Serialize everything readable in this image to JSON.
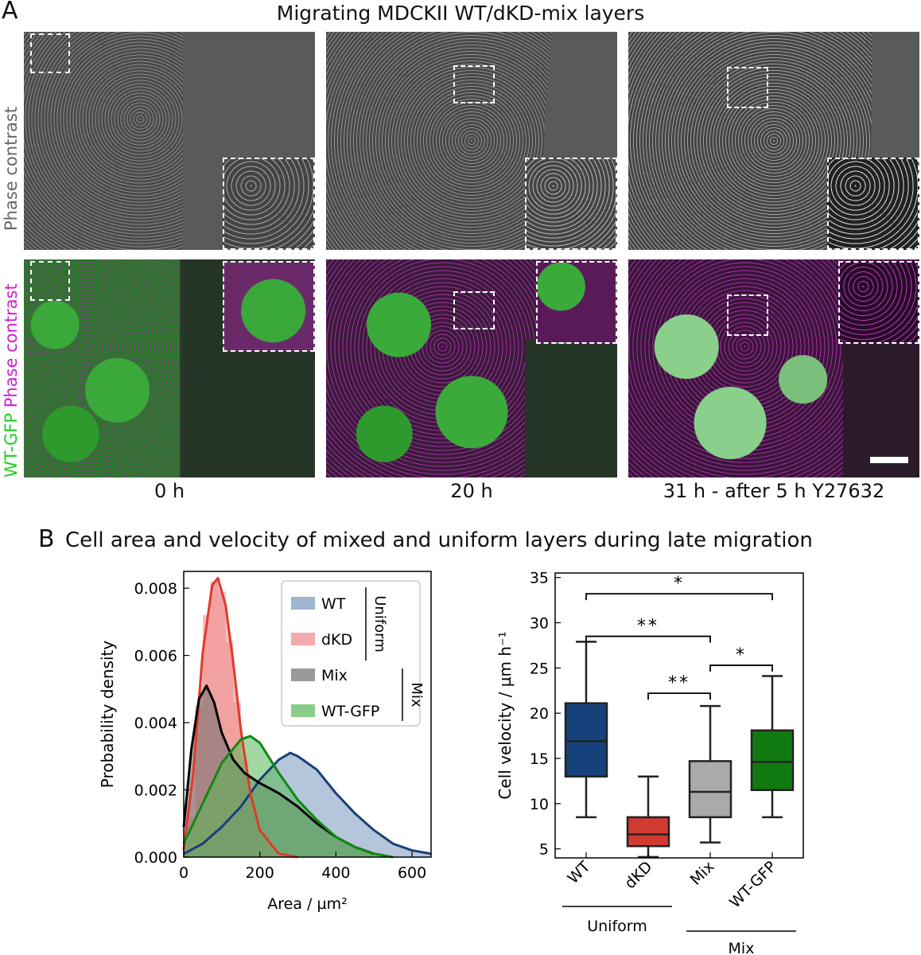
{
  "panel_a": {
    "letter": "A",
    "title": "Migrating MDCKII WT/dKD-mix layers",
    "row_label_top": "Phase contrast",
    "row_label_bottom_green": "WT-GFP",
    "row_label_bottom_magenta": "Phase contrast",
    "time_labels": [
      "0 h",
      "20 h",
      "31 h - after 5 h Y27632"
    ],
    "colors": {
      "green": "#22cc22",
      "magenta": "#cc22cc",
      "gray": "#666666"
    }
  },
  "panel_b": {
    "letter": "B",
    "title": "Cell area and velocity of mixed and uniform layers during late migration"
  },
  "chart_data": [
    {
      "type": "area",
      "xlabel": "Area / µm²",
      "ylabel": "Probability density",
      "xlim": [
        0,
        650
      ],
      "ylim": [
        0,
        0.0085
      ],
      "xticks": [
        "0",
        "200",
        "400",
        "600"
      ],
      "yticks": [
        "0.000",
        "0.002",
        "0.004",
        "0.006",
        "0.008"
      ],
      "legend": {
        "entries": [
          "WT",
          "dKD",
          "Mix",
          "WT-GFP"
        ],
        "groups": [
          "Uniform",
          "Mix"
        ],
        "placement": "top-right"
      },
      "series": [
        {
          "name": "WT",
          "fill": "#7896bb",
          "line": "#1a3f7a",
          "x": [
            0,
            50,
            100,
            150,
            200,
            250,
            280,
            300,
            350,
            400,
            450,
            500,
            550,
            600,
            650
          ],
          "y": [
            0.0001,
            0.0004,
            0.0009,
            0.0015,
            0.0023,
            0.0029,
            0.0031,
            0.003,
            0.0026,
            0.0019,
            0.0013,
            0.0008,
            0.0004,
            0.0002,
            0.0001
          ]
        },
        {
          "name": "dKD",
          "fill": "#ee8888",
          "line": "#e03a2a",
          "x": [
            0,
            25,
            50,
            75,
            90,
            110,
            130,
            150,
            175,
            200,
            250,
            300
          ],
          "y": [
            0.0002,
            0.0025,
            0.0061,
            0.0081,
            0.0083,
            0.0075,
            0.0058,
            0.0038,
            0.0019,
            0.0008,
            0.0001,
            0.0
          ],
          "hist_x": [
            20,
            40,
            60,
            80,
            100,
            120,
            140,
            160,
            180,
            200
          ],
          "hist_y": [
            0.0012,
            0.0045,
            0.0072,
            0.0082,
            0.0079,
            0.0064,
            0.0046,
            0.0029,
            0.0016,
            0.0007
          ]
        },
        {
          "name": "Mix",
          "fill": "#6e6e6e",
          "line": "#000000",
          "x": [
            0,
            20,
            40,
            60,
            80,
            100,
            130,
            160,
            200,
            250,
            300,
            350,
            400,
            450,
            500
          ],
          "y": [
            0.0009,
            0.0032,
            0.0047,
            0.0051,
            0.0046,
            0.0037,
            0.0029,
            0.0025,
            0.0022,
            0.0019,
            0.0015,
            0.001,
            0.0006,
            0.0003,
            0.0001
          ]
        },
        {
          "name": "WT-GFP",
          "fill": "#55b855",
          "line": "#118811",
          "x": [
            0,
            50,
            100,
            150,
            175,
            200,
            250,
            300,
            350,
            400,
            450,
            500,
            550
          ],
          "y": [
            0.0004,
            0.0016,
            0.0028,
            0.0035,
            0.0036,
            0.0034,
            0.0025,
            0.0017,
            0.0011,
            0.0006,
            0.0003,
            0.0001,
            0.0
          ]
        }
      ]
    },
    {
      "type": "box",
      "ylabel": "Cell velocity / µm h⁻¹",
      "ylim": [
        4,
        35.5
      ],
      "yticks": [
        "5",
        "10",
        "15",
        "20",
        "25",
        "30",
        "35"
      ],
      "categories": [
        "WT",
        "dKD",
        "Mix",
        "WT-GFP"
      ],
      "group_labels": [
        "Uniform",
        "Mix"
      ],
      "boxes": [
        {
          "name": "WT",
          "color": "#15427a",
          "whislo": 8.5,
          "q1": 13.0,
          "median": 16.9,
          "q3": 21.1,
          "whishi": 27.9
        },
        {
          "name": "dKD",
          "color": "#d03a30",
          "whislo": 4.1,
          "q1": 5.3,
          "median": 6.6,
          "q3": 8.5,
          "whishi": 13.0
        },
        {
          "name": "Mix",
          "color": "#aaaaaa",
          "whislo": 5.7,
          "q1": 8.5,
          "median": 11.3,
          "q3": 14.7,
          "whishi": 20.8
        },
        {
          "name": "WT-GFP",
          "color": "#107a10",
          "whislo": 8.5,
          "q1": 11.5,
          "median": 14.6,
          "q3": 18.1,
          "whishi": 24.1
        }
      ],
      "significance": [
        {
          "from": "WT",
          "to": "WT-GFP",
          "y": 33.2,
          "label": "*"
        },
        {
          "from": "WT",
          "to": "Mix",
          "y": 28.5,
          "label": "**"
        },
        {
          "from": "Mix",
          "to": "WT-GFP",
          "y": 25.3,
          "label": "*"
        },
        {
          "from": "dKD",
          "to": "Mix",
          "y": 22.2,
          "label": "**"
        }
      ]
    }
  ]
}
